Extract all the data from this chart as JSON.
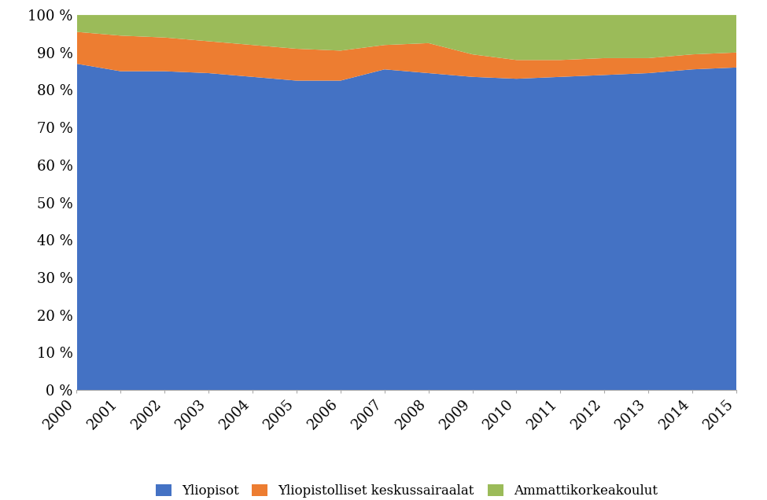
{
  "years": [
    2000,
    2001,
    2002,
    2003,
    2004,
    2005,
    2006,
    2007,
    2008,
    2009,
    2010,
    2011,
    2012,
    2013,
    2014,
    2015
  ],
  "yliopisot": [
    87.0,
    85.0,
    85.0,
    84.5,
    83.5,
    82.5,
    82.5,
    85.5,
    84.5,
    83.5,
    83.0,
    83.5,
    84.0,
    84.5,
    85.5,
    86.0
  ],
  "keskussairaalat": [
    8.5,
    9.5,
    9.0,
    8.5,
    8.5,
    8.5,
    8.0,
    6.5,
    8.0,
    6.0,
    5.0,
    4.5,
    4.5,
    4.0,
    4.0,
    4.0
  ],
  "ammattikorkeakoulut": [
    4.5,
    5.5,
    6.0,
    7.0,
    8.0,
    9.0,
    9.5,
    8.0,
    7.5,
    10.5,
    12.0,
    12.0,
    11.5,
    11.5,
    10.5,
    10.0
  ],
  "colors": {
    "yliopisot": "#4472C4",
    "keskussairaalat": "#ED7D31",
    "ammattikorkeakoulut": "#9BBB59"
  },
  "labels": {
    "yliopisot": "Yliopisot",
    "keskussairaalat": "Yliopistolliset keskussairaalat",
    "ammattikorkeakoulut": "Ammattikorkeakoulut"
  },
  "ylim": [
    0,
    100
  ],
  "background_color": "#FFFFFF",
  "font_family": "serif"
}
